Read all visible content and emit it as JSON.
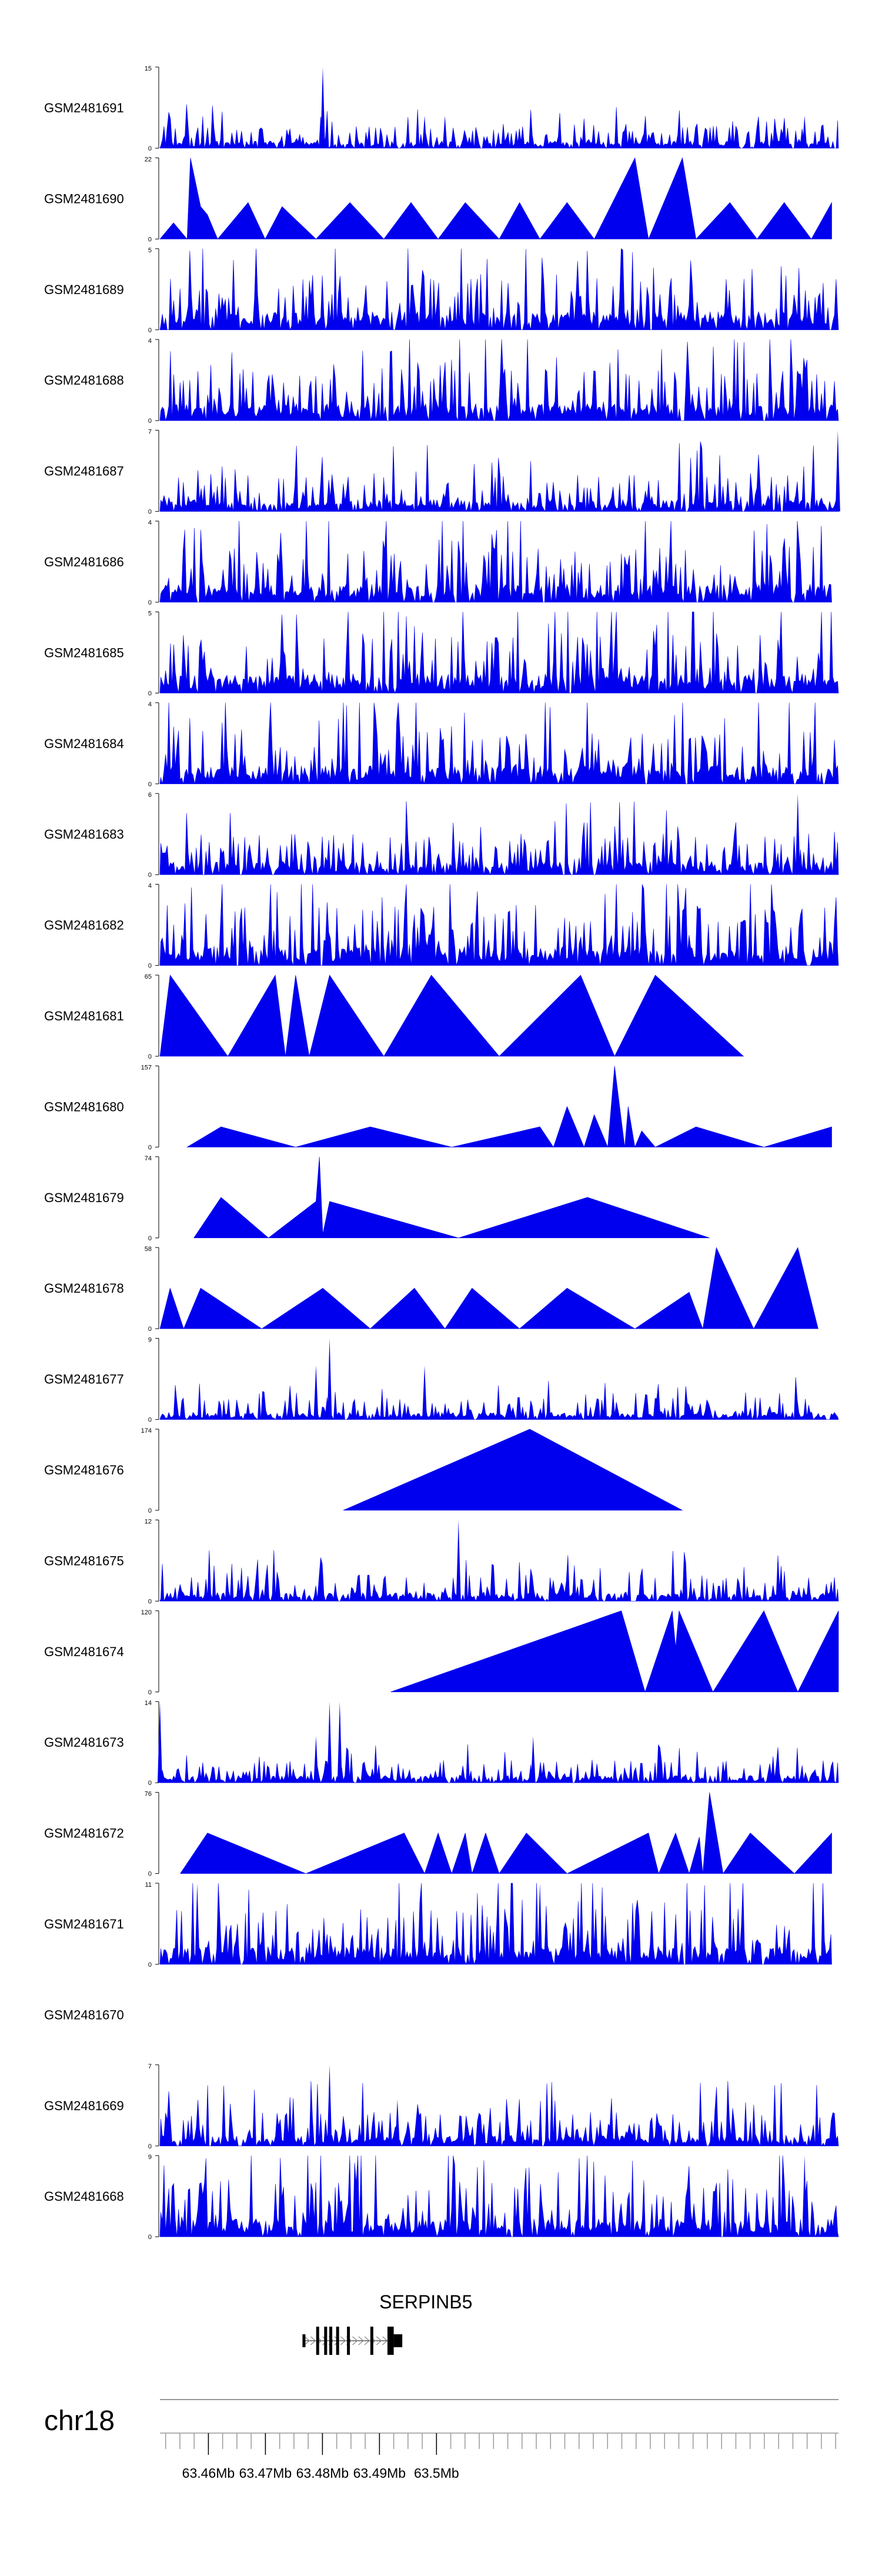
{
  "chart_data": {
    "type": "area",
    "title": "",
    "xlabel": "",
    "ylabel": "",
    "region": {
      "chromosome": "chr18",
      "xlim": [
        63.4515,
        63.5705
      ],
      "unit": "Mb"
    },
    "x_ticks": [
      63.46,
      63.47,
      63.48,
      63.49,
      63.5
    ],
    "x_tick_labels": [
      "63.46Mb",
      "63.47Mb",
      "63.48Mb",
      "63.49Mb",
      "63.5Mb"
    ],
    "minor_tick_step": 0.0025,
    "gene": {
      "name": "SERPINB5",
      "start": 63.4765,
      "end": 63.494,
      "strand": "+",
      "exons": [
        {
          "start": 63.4765,
          "end": 63.477,
          "height": "utr"
        },
        {
          "start": 63.4789,
          "end": 63.479,
          "height": "cds"
        },
        {
          "start": 63.4803,
          "end": 63.4805,
          "height": "cds"
        },
        {
          "start": 63.4812,
          "end": 63.4813,
          "height": "cds"
        },
        {
          "start": 63.4824,
          "end": 63.4826,
          "height": "cds"
        },
        {
          "start": 63.4843,
          "end": 63.4846,
          "height": "cds"
        },
        {
          "start": 63.4884,
          "end": 63.4885,
          "height": "cds"
        },
        {
          "start": 63.4914,
          "end": 63.4925,
          "height": "cds"
        },
        {
          "start": 63.4925,
          "end": 63.494,
          "height": "utr"
        }
      ]
    },
    "series": [
      {
        "name": "GSM2481691",
        "ylim": [
          0,
          15
        ],
        "pattern": "dense",
        "coverage": [
          0.0,
          1.0
        ],
        "seed": 11,
        "typical": 0.12,
        "peaks": [
          {
            "x": 0.24,
            "v": 15
          },
          {
            "x": 0.39,
            "v": 6
          },
          {
            "x": 0.42,
            "v": 6
          },
          {
            "x": 0.95,
            "v": 6
          }
        ]
      },
      {
        "name": "GSM2481690",
        "ylim": [
          0,
          22
        ],
        "pattern": "sparse",
        "coverage": [
          0.0,
          0.99
        ],
        "seed": 12,
        "typical": 0.5,
        "points": [
          [
            0.0,
            0
          ],
          [
            0.02,
            0.2
          ],
          [
            0.04,
            0
          ],
          [
            0.045,
            1.0
          ],
          [
            0.06,
            0.4
          ],
          [
            0.07,
            0.3
          ],
          [
            0.085,
            0
          ],
          [
            0.13,
            0.45
          ],
          [
            0.155,
            0
          ],
          [
            0.18,
            0.4
          ],
          [
            0.23,
            0
          ],
          [
            0.28,
            0.45
          ],
          [
            0.33,
            0
          ],
          [
            0.37,
            0.45
          ],
          [
            0.41,
            0
          ],
          [
            0.45,
            0.45
          ],
          [
            0.5,
            0
          ],
          [
            0.53,
            0.45
          ],
          [
            0.56,
            0
          ],
          [
            0.6,
            0.45
          ],
          [
            0.64,
            0
          ],
          [
            0.7,
            1.0
          ],
          [
            0.72,
            0
          ],
          [
            0.77,
            1.0
          ],
          [
            0.79,
            0
          ],
          [
            0.84,
            0.45
          ],
          [
            0.88,
            0
          ],
          [
            0.92,
            0.45
          ],
          [
            0.96,
            0
          ],
          [
            0.99,
            0.45
          ],
          [
            0.99,
            0
          ]
        ]
      },
      {
        "name": "GSM2481689",
        "ylim": [
          0,
          5
        ],
        "pattern": "dense",
        "coverage": [
          0.0,
          1.0
        ],
        "seed": 13,
        "typical": 0.3,
        "peaks": []
      },
      {
        "name": "GSM2481688",
        "ylim": [
          0,
          4
        ],
        "pattern": "dense",
        "coverage": [
          0.0,
          1.0
        ],
        "seed": 14,
        "typical": 0.28,
        "peaks": []
      },
      {
        "name": "GSM2481687",
        "ylim": [
          0,
          7
        ],
        "pattern": "dense",
        "coverage": [
          0.0,
          1.0
        ],
        "seed": 15,
        "typical": 0.2,
        "peaks": [
          {
            "x": 0.999,
            "v": 7
          }
        ]
      },
      {
        "name": "GSM2481686",
        "ylim": [
          0,
          4
        ],
        "pattern": "dense",
        "coverage": [
          0.0,
          0.99
        ],
        "seed": 16,
        "typical": 0.3,
        "peaks": []
      },
      {
        "name": "GSM2481685",
        "ylim": [
          0,
          5
        ],
        "pattern": "dense",
        "coverage": [
          0.0,
          1.0
        ],
        "seed": 17,
        "typical": 0.32,
        "peaks": []
      },
      {
        "name": "GSM2481684",
        "ylim": [
          0,
          4
        ],
        "pattern": "dense",
        "coverage": [
          0.0,
          1.0
        ],
        "seed": 18,
        "typical": 0.3,
        "peaks": []
      },
      {
        "name": "GSM2481683",
        "ylim": [
          0,
          6
        ],
        "pattern": "dense",
        "coverage": [
          0.0,
          1.0
        ],
        "seed": 19,
        "typical": 0.22,
        "peaks": [
          {
            "x": 0.94,
            "v": 6
          }
        ]
      },
      {
        "name": "GSM2481682",
        "ylim": [
          0,
          4
        ],
        "pattern": "dense",
        "coverage": [
          0.0,
          1.0
        ],
        "seed": 20,
        "typical": 0.32,
        "peaks": []
      },
      {
        "name": "GSM2481681",
        "ylim": [
          0,
          65
        ],
        "pattern": "sparse",
        "coverage": [
          0.0,
          0.86
        ],
        "seed": 21,
        "typical": 0.5,
        "points": [
          [
            0.0,
            0
          ],
          [
            0.015,
            1.0
          ],
          [
            0.1,
            0
          ],
          [
            0.17,
            1.0
          ],
          [
            0.185,
            0
          ],
          [
            0.2,
            1.0
          ],
          [
            0.22,
            0
          ],
          [
            0.25,
            1.0
          ],
          [
            0.33,
            0
          ],
          [
            0.4,
            1.0
          ],
          [
            0.5,
            0
          ],
          [
            0.62,
            1.0
          ],
          [
            0.67,
            0
          ],
          [
            0.73,
            1.0
          ],
          [
            0.86,
            0
          ]
        ]
      },
      {
        "name": "GSM2481680",
        "ylim": [
          0,
          157
        ],
        "pattern": "sparse",
        "coverage": [
          0.04,
          0.99
        ],
        "seed": 22,
        "typical": 0.3,
        "points": [
          [
            0.04,
            0
          ],
          [
            0.09,
            0.25
          ],
          [
            0.2,
            0
          ],
          [
            0.31,
            0.25
          ],
          [
            0.43,
            0
          ],
          [
            0.56,
            0.25
          ],
          [
            0.58,
            0
          ],
          [
            0.6,
            0.5
          ],
          [
            0.625,
            0
          ],
          [
            0.64,
            0.4
          ],
          [
            0.66,
            0
          ],
          [
            0.67,
            1.0
          ],
          [
            0.685,
            0
          ],
          [
            0.69,
            0.5
          ],
          [
            0.7,
            0
          ],
          [
            0.71,
            0.2
          ],
          [
            0.73,
            0
          ],
          [
            0.79,
            0.25
          ],
          [
            0.89,
            0
          ],
          [
            0.99,
            0.25
          ],
          [
            0.99,
            0
          ]
        ]
      },
      {
        "name": "GSM2481679",
        "ylim": [
          0,
          74
        ],
        "pattern": "sparse",
        "coverage": [
          0.05,
          0.81
        ],
        "seed": 23,
        "typical": 0.3,
        "points": [
          [
            0.05,
            0
          ],
          [
            0.09,
            0.5
          ],
          [
            0.16,
            0
          ],
          [
            0.23,
            0.45
          ],
          [
            0.235,
            1.0
          ],
          [
            0.24,
            0.05
          ],
          [
            0.25,
            0.45
          ],
          [
            0.44,
            0
          ],
          [
            0.63,
            0.5
          ],
          [
            0.81,
            0
          ]
        ]
      },
      {
        "name": "GSM2481678",
        "ylim": [
          0,
          58
        ],
        "pattern": "sparse",
        "coverage": [
          0.0,
          0.97
        ],
        "seed": 24,
        "typical": 0.3,
        "points": [
          [
            0.0,
            0
          ],
          [
            0.015,
            0.5
          ],
          [
            0.035,
            0
          ],
          [
            0.06,
            0.5
          ],
          [
            0.15,
            0
          ],
          [
            0.24,
            0.5
          ],
          [
            0.31,
            0
          ],
          [
            0.375,
            0.5
          ],
          [
            0.42,
            0
          ],
          [
            0.46,
            0.5
          ],
          [
            0.53,
            0
          ],
          [
            0.6,
            0.5
          ],
          [
            0.7,
            0
          ],
          [
            0.78,
            0.45
          ],
          [
            0.8,
            0
          ],
          [
            0.82,
            1.0
          ],
          [
            0.875,
            0
          ],
          [
            0.94,
            1.0
          ],
          [
            0.97,
            0
          ]
        ]
      },
      {
        "name": "GSM2481677",
        "ylim": [
          0,
          9
        ],
        "pattern": "dense",
        "coverage": [
          0.0,
          1.0
        ],
        "seed": 25,
        "typical": 0.12,
        "peaks": [
          {
            "x": 0.25,
            "v": 9
          },
          {
            "x": 0.23,
            "v": 6
          },
          {
            "x": 0.39,
            "v": 6
          }
        ]
      },
      {
        "name": "GSM2481676",
        "ylim": [
          0,
          174
        ],
        "pattern": "sparse",
        "coverage": [
          0.27,
          0.77
        ],
        "seed": 26,
        "typical": 0.5,
        "points": [
          [
            0.27,
            0
          ],
          [
            0.545,
            1.0
          ],
          [
            0.77,
            0
          ]
        ]
      },
      {
        "name": "GSM2481675",
        "ylim": [
          0,
          12
        ],
        "pattern": "dense",
        "coverage": [
          0.0,
          1.0
        ],
        "seed": 27,
        "typical": 0.14,
        "peaks": [
          {
            "x": 0.44,
            "v": 12
          }
        ]
      },
      {
        "name": "GSM2481674",
        "ylim": [
          0,
          120
        ],
        "pattern": "sparse",
        "coverage": [
          0.34,
          1.0
        ],
        "seed": 28,
        "typical": 0.5,
        "points": [
          [
            0.34,
            0
          ],
          [
            0.68,
            1.0
          ],
          [
            0.715,
            0
          ],
          [
            0.755,
            1.0
          ],
          [
            0.76,
            0.55
          ],
          [
            0.765,
            1.0
          ],
          [
            0.815,
            0
          ],
          [
            0.89,
            1.0
          ],
          [
            0.94,
            0
          ],
          [
            1.0,
            1.0
          ],
          [
            1.0,
            0
          ]
        ]
      },
      {
        "name": "GSM2481673",
        "ylim": [
          0,
          14
        ],
        "pattern": "dense",
        "coverage": [
          0.0,
          1.0
        ],
        "seed": 29,
        "typical": 0.12,
        "peaks": [
          {
            "x": 0.0,
            "v": 14
          },
          {
            "x": 0.25,
            "v": 14
          },
          {
            "x": 0.265,
            "v": 14
          },
          {
            "x": 0.23,
            "v": 8
          },
          {
            "x": 0.55,
            "v": 8
          }
        ]
      },
      {
        "name": "GSM2481672",
        "ylim": [
          0,
          76
        ],
        "pattern": "sparse",
        "coverage": [
          0.03,
          0.99
        ],
        "seed": 30,
        "typical": 0.3,
        "points": [
          [
            0.03,
            0
          ],
          [
            0.07,
            0.5
          ],
          [
            0.215,
            0
          ],
          [
            0.36,
            0.5
          ],
          [
            0.39,
            0
          ],
          [
            0.41,
            0.5
          ],
          [
            0.43,
            0
          ],
          [
            0.45,
            0.5
          ],
          [
            0.46,
            0
          ],
          [
            0.48,
            0.5
          ],
          [
            0.5,
            0
          ],
          [
            0.54,
            0.5
          ],
          [
            0.6,
            0
          ],
          [
            0.72,
            0.5
          ],
          [
            0.735,
            0
          ],
          [
            0.76,
            0.5
          ],
          [
            0.78,
            0
          ],
          [
            0.795,
            0.45
          ],
          [
            0.8,
            0
          ],
          [
            0.81,
            1.0
          ],
          [
            0.83,
            0
          ],
          [
            0.87,
            0.5
          ],
          [
            0.935,
            0
          ],
          [
            0.99,
            0.5
          ],
          [
            0.99,
            0
          ]
        ]
      },
      {
        "name": "GSM2481671",
        "ylim": [
          0,
          11
        ],
        "pattern": "dense",
        "coverage": [
          0.0,
          0.99
        ],
        "seed": 31,
        "typical": 0.3,
        "peaks": [
          {
            "x": 0.055,
            "v": 11
          },
          {
            "x": 0.56,
            "v": 11
          }
        ]
      },
      {
        "name": "GSM2481670",
        "ylim": null,
        "pattern": "empty",
        "coverage": [
          0,
          0
        ],
        "seed": 32,
        "typical": 0
      },
      {
        "name": "GSM2481669",
        "ylim": [
          0,
          7
        ],
        "pattern": "dense",
        "coverage": [
          0.0,
          1.0
        ],
        "seed": 33,
        "typical": 0.18,
        "peaks": [
          {
            "x": 0.25,
            "v": 7
          },
          {
            "x": 0.35,
            "v": 4
          }
        ]
      },
      {
        "name": "GSM2481668",
        "ylim": [
          0,
          9
        ],
        "pattern": "dense",
        "coverage": [
          0.0,
          1.0
        ],
        "seed": 34,
        "typical": 0.3,
        "peaks": [
          {
            "x": 0.95,
            "v": 9
          }
        ]
      }
    ],
    "colors": {
      "signal": "#0000ee",
      "axis": "#000000",
      "gene": "#000000",
      "intron_arrow": "#888888",
      "baseline": "#999999"
    }
  }
}
